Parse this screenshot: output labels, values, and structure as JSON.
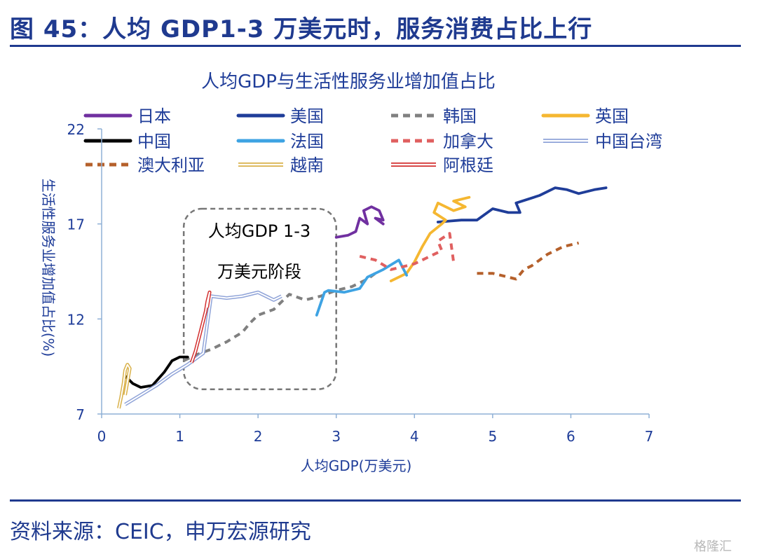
{
  "figure": {
    "title": "图 45：人均 GDP1-3 万美元时，服务消费占比上行",
    "source": "资料来源：CEIC，申万宏源研究",
    "watermark": "格隆汇"
  },
  "colors": {
    "brand": "#1f3a8f",
    "axis": "#8fb0d6",
    "japan": "#7030a0",
    "usa": "#1f3d99",
    "korea": "#808080",
    "uk": "#f5b731",
    "china": "#000000",
    "france": "#3ea3e3",
    "canada": "#e06060",
    "taiwan": "#8fa3d8",
    "australia": "#b5602b",
    "vietnam": "#d9b14a",
    "argentina": "#d33030"
  },
  "chart_data": {
    "type": "line",
    "title": "人均GDP与生活性服务业增加值占比",
    "xlabel": "人均GDP(万美元)",
    "ylabel": "生活性服务业增加值占比(%)",
    "xlim": [
      0,
      7
    ],
    "ylim": [
      7,
      22
    ],
    "xticks": [
      "0",
      "1",
      "2",
      "3",
      "4",
      "5",
      "6",
      "7"
    ],
    "yticks": [
      "7",
      "12",
      "17",
      "22"
    ],
    "grid": false,
    "legend_position": "top",
    "annotation": [
      "人均GDP 1-3",
      "万美元阶段"
    ],
    "highlight_box": {
      "x": [
        1.05,
        3.0
      ],
      "y": [
        8.3,
        17.8
      ]
    },
    "series": [
      {
        "name": "日本",
        "style": "solid",
        "x": [
          3.0,
          3.15,
          3.25,
          3.3,
          3.4,
          3.35,
          3.45,
          3.55,
          3.6,
          3.5,
          3.6
        ],
        "y": [
          16.3,
          16.4,
          16.6,
          17.3,
          17.0,
          17.7,
          17.9,
          17.7,
          17.2,
          17.3,
          17.0
        ]
      },
      {
        "name": "美国",
        "style": "solid",
        "x": [
          4.3,
          4.6,
          4.8,
          5.0,
          5.2,
          5.35,
          5.3,
          5.6,
          5.8,
          5.95,
          6.1,
          6.3,
          6.45
        ],
        "y": [
          17.1,
          17.2,
          17.2,
          17.8,
          17.6,
          17.6,
          18.1,
          18.5,
          18.9,
          18.8,
          18.6,
          18.8,
          18.9
        ]
      },
      {
        "name": "韩国",
        "style": "dashed",
        "x": [
          1.05,
          1.2,
          1.4,
          1.6,
          1.8,
          1.9,
          2.0,
          2.2,
          2.4,
          2.6,
          2.8,
          3.0,
          3.2,
          3.4,
          3.5
        ],
        "y": [
          9.8,
          10.1,
          10.4,
          10.8,
          11.3,
          11.8,
          12.2,
          12.5,
          13.3,
          13.0,
          13.2,
          13.5,
          13.7,
          14.1,
          14.4
        ]
      },
      {
        "name": "英国",
        "style": "solid",
        "x": [
          3.7,
          3.9,
          4.0,
          4.1,
          4.2,
          4.35,
          4.4,
          4.25,
          4.3,
          4.5,
          4.65,
          4.5,
          4.7
        ],
        "y": [
          14.0,
          14.4,
          15.0,
          15.8,
          16.5,
          17.0,
          17.2,
          17.6,
          18.1,
          17.7,
          17.9,
          18.2,
          18.4
        ]
      },
      {
        "name": "中国",
        "style": "solid",
        "x": [
          0.3,
          0.4,
          0.5,
          0.65,
          0.8,
          0.9,
          1.0,
          1.1
        ],
        "y": [
          9.0,
          8.6,
          8.4,
          8.5,
          9.2,
          9.8,
          10.0,
          10.0
        ]
      },
      {
        "name": "法国",
        "style": "solid",
        "x": [
          2.75,
          2.85,
          2.9,
          3.1,
          3.3,
          3.4,
          3.6,
          3.8,
          3.9
        ],
        "y": [
          12.2,
          13.4,
          13.5,
          13.4,
          13.6,
          14.2,
          14.6,
          15.1,
          14.3
        ]
      },
      {
        "name": "加拿大",
        "style": "dashed",
        "x": [
          3.3,
          3.5,
          3.7,
          3.9,
          4.0,
          4.2,
          4.35,
          4.3,
          4.45,
          4.5
        ],
        "y": [
          15.3,
          15.1,
          14.6,
          14.8,
          14.9,
          15.3,
          15.6,
          16.1,
          16.5,
          15.0
        ]
      },
      {
        "name": "中国台湾",
        "style": "double",
        "x": [
          0.3,
          0.5,
          0.7,
          0.9,
          1.1,
          1.3,
          1.4,
          1.6,
          1.8,
          2.0,
          2.2,
          2.3
        ],
        "y": [
          7.5,
          8.0,
          8.5,
          9.1,
          9.6,
          10.2,
          13.2,
          13.1,
          13.2,
          13.4,
          13.0,
          13.2
        ]
      },
      {
        "name": "澳大利亚",
        "style": "dashed",
        "x": [
          4.8,
          5.0,
          5.2,
          5.3,
          5.4,
          5.5,
          5.6,
          5.7,
          5.9,
          6.1
        ],
        "y": [
          14.4,
          14.4,
          14.2,
          14.1,
          14.6,
          14.8,
          15.1,
          15.4,
          15.8,
          16.0
        ]
      },
      {
        "name": "越南",
        "style": "double",
        "x": [
          0.22,
          0.25,
          0.28,
          0.3,
          0.33,
          0.36,
          0.3
        ],
        "y": [
          7.3,
          7.9,
          8.6,
          9.3,
          9.6,
          9.4,
          8.0
        ]
      },
      {
        "name": "阿根廷",
        "style": "double",
        "x": [
          1.15,
          1.2,
          1.25,
          1.3,
          1.33,
          1.35,
          1.38,
          1.35
        ],
        "y": [
          9.7,
          10.3,
          11.1,
          11.9,
          12.4,
          12.9,
          13.4,
          12.6
        ]
      }
    ]
  }
}
